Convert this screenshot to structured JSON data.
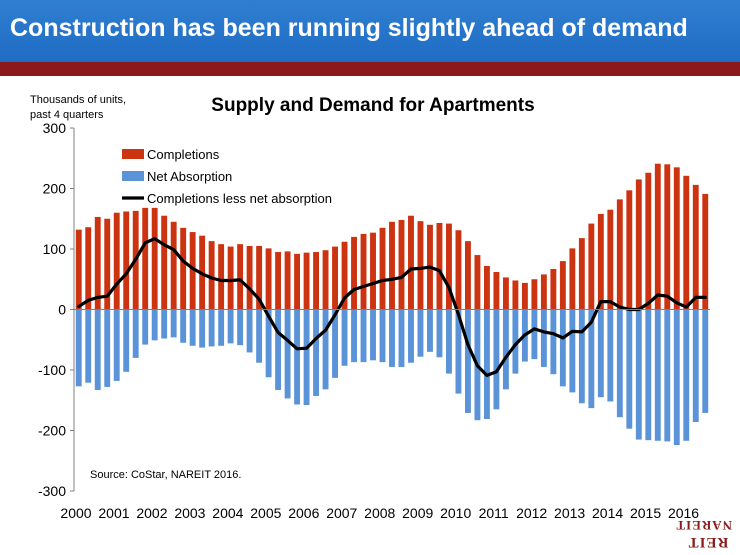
{
  "header": {
    "title": "Construction has been running slightly ahead of demand"
  },
  "logo": {
    "top": "REIT",
    "bottom": "NAREIT"
  },
  "colors": {
    "banner": "#2277cc",
    "stripe": "#8b1a1a",
    "completions": "#cc3311",
    "net_absorption": "#5b93d8",
    "net_line": "#000000"
  },
  "chart_data": {
    "type": "bar",
    "title": "Supply and Demand for Apartments",
    "ylabel": "Thousands of units, past 4 quarters",
    "source": "Source: CoStar, NAREIT 2016.",
    "ylim": [
      -300,
      300
    ],
    "yticks": [
      300,
      200,
      100,
      0,
      -100,
      -200,
      -300
    ],
    "ytick_labels": [
      "300",
      "200",
      "100",
      "0",
      "-100",
      "-200",
      "-300"
    ],
    "x_labels": [
      "2000",
      "2001",
      "2002",
      "2003",
      "2004",
      "2005",
      "2006",
      "2007",
      "2008",
      "2009",
      "2010",
      "2011",
      "2012",
      "2013",
      "2014",
      "2015",
      "2016"
    ],
    "legend_position": "top-left",
    "series": [
      {
        "name": "Completions",
        "kind": "bar",
        "color": "#cc3311",
        "values": [
          132,
          136,
          153,
          150,
          160,
          162,
          163,
          168,
          168,
          155,
          145,
          135,
          128,
          122,
          113,
          108,
          104,
          108,
          105,
          105,
          101,
          95,
          96,
          92,
          94,
          95,
          98,
          104,
          112,
          120,
          125,
          127,
          135,
          145,
          148,
          155,
          146,
          140,
          143,
          142,
          131,
          113,
          90,
          72,
          62,
          53,
          48,
          44,
          50,
          58,
          67,
          80,
          101,
          118,
          142,
          158,
          165,
          182,
          197,
          215,
          226,
          241,
          240,
          235,
          221,
          206,
          191
        ]
      },
      {
        "name": "Net Absorption",
        "kind": "bar",
        "color": "#5b93d8",
        "values": [
          -127,
          -121,
          -133,
          -128,
          -118,
          -103,
          -80,
          -58,
          -51,
          -48,
          -46,
          -55,
          -60,
          -63,
          -61,
          -60,
          -56,
          -59,
          -71,
          -88,
          -112,
          -133,
          -147,
          -157,
          -158,
          -143,
          -132,
          -113,
          -93,
          -87,
          -87,
          -84,
          -87,
          -95,
          -95,
          -88,
          -78,
          -70,
          -79,
          -106,
          -139,
          -171,
          -183,
          -181,
          -165,
          -132,
          -106,
          -86,
          -82,
          -95,
          -107,
          -127,
          -137,
          -155,
          -163,
          -145,
          -152,
          -178,
          -197,
          -215,
          -216,
          -217,
          -218,
          -224,
          -217,
          -186,
          -171
        ]
      },
      {
        "name": "Completions less net absorption",
        "kind": "line",
        "color": "#000000",
        "values": [
          5,
          15,
          20,
          22,
          42,
          59,
          83,
          110,
          117,
          107,
          99,
          80,
          68,
          59,
          52,
          48,
          48,
          49,
          34,
          17,
          -11,
          -38,
          -51,
          -65,
          -64,
          -48,
          -34,
          -9,
          19,
          33,
          38,
          43,
          48,
          50,
          53,
          67,
          68,
          70,
          64,
          36,
          -8,
          -58,
          -93,
          -109,
          -103,
          -79,
          -58,
          -42,
          -32,
          -37,
          -40,
          -47,
          -36,
          -37,
          -21,
          13,
          13,
          4,
          0,
          0,
          10,
          24,
          22,
          11,
          4,
          20,
          20
        ]
      }
    ]
  }
}
